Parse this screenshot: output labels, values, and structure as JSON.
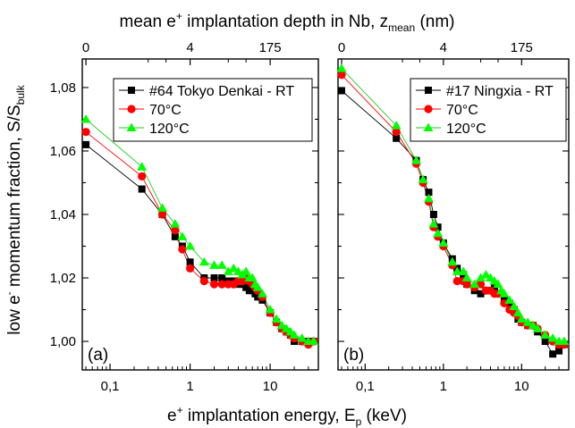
{
  "figure": {
    "top_title_main": "mean e",
    "top_title_sup": "+",
    "top_title_rest": " implantation depth in Nb, z",
    "top_title_sub": "mean",
    "top_title_unit": " (nm)",
    "ylabel_a": "low e",
    "ylabel_sup": "-",
    "ylabel_b": " momentum fraction, S/S",
    "ylabel_sub": "bulk",
    "xlabel_a": "e",
    "xlabel_sup": "+",
    "xlabel_b": " implantation energy, E",
    "xlabel_sub": "p",
    "xlabel_unit": " (keV)"
  },
  "chart_data": [
    {
      "type": "line",
      "panel_label": "(a)",
      "xscale": "log",
      "xlim": [
        0.045,
        40
      ],
      "ylim": [
        0.991,
        1.089
      ],
      "x_ticks": [
        {
          "value": 0.1,
          "label": "0,1"
        },
        {
          "value": 1,
          "label": "1"
        },
        {
          "value": 10,
          "label": "10"
        }
      ],
      "y_ticks": [
        {
          "value": 1.0,
          "label": "1,00"
        },
        {
          "value": 1.02,
          "label": "1,02"
        },
        {
          "value": 1.04,
          "label": "1,04"
        },
        {
          "value": 1.06,
          "label": "1,06"
        },
        {
          "value": 1.08,
          "label": "1,08"
        }
      ],
      "top_ticks": [
        {
          "value": 0.05,
          "label": "0"
        },
        {
          "value": 1.0,
          "label": "4"
        },
        {
          "value": 10,
          "label": "175"
        }
      ],
      "legend_position": "top-right",
      "series": [
        {
          "name": "#64 Tokyo Denkai - RT",
          "marker": "square",
          "color": "#000000",
          "x": [
            0.05,
            0.25,
            0.45,
            0.65,
            0.8,
            1.0,
            1.5,
            2.0,
            2.5,
            3.0,
            3.5,
            4.0,
            4.5,
            5.0,
            5.5,
            6.0,
            6.5,
            7.0,
            8.0,
            10,
            12,
            14,
            16,
            18,
            20,
            25,
            30,
            35
          ],
          "y": [
            1.062,
            1.048,
            1.04,
            1.033,
            1.03,
            1.025,
            1.02,
            1.02,
            1.02,
            1.019,
            1.019,
            1.018,
            1.018,
            1.017,
            1.016,
            1.016,
            1.015,
            1.014,
            1.013,
            1.009,
            1.006,
            1.004,
            1.003,
            1.002,
            1.0,
            1.0,
            1.0,
            1.0
          ]
        },
        {
          "name": "70°C",
          "marker": "circle",
          "color": "#ff0000",
          "x": [
            0.05,
            0.25,
            0.45,
            0.65,
            0.8,
            1.0,
            1.5,
            2.0,
            2.5,
            3.0,
            3.5,
            4.0,
            4.5,
            5.0,
            5.5,
            6.0,
            6.5,
            7.0,
            8.0,
            10,
            12,
            14,
            16,
            18,
            20,
            25,
            30,
            35
          ],
          "y": [
            1.066,
            1.052,
            1.04,
            1.035,
            1.029,
            1.023,
            1.019,
            1.018,
            1.018,
            1.018,
            1.018,
            1.019,
            1.019,
            1.02,
            1.019,
            1.018,
            1.017,
            1.016,
            1.014,
            1.009,
            1.006,
            1.004,
            1.003,
            1.002,
            1.001,
            1.0,
            0.999,
            1.0
          ]
        },
        {
          "name": "120°C",
          "marker": "triangle",
          "color": "#00ff00",
          "x": [
            0.05,
            0.25,
            0.45,
            0.65,
            0.8,
            1.0,
            1.5,
            2.0,
            2.5,
            3.0,
            3.5,
            4.0,
            4.5,
            5.0,
            5.5,
            6.0,
            6.5,
            7.0,
            8.0,
            10,
            12,
            14,
            16,
            18,
            20,
            25,
            30,
            35
          ],
          "y": [
            1.07,
            1.055,
            1.042,
            1.037,
            1.033,
            1.03,
            1.025,
            1.024,
            1.024,
            1.022,
            1.023,
            1.022,
            1.021,
            1.022,
            1.02,
            1.02,
            1.018,
            1.017,
            1.015,
            1.01,
            1.007,
            1.005,
            1.004,
            1.003,
            1.002,
            1.001,
            1.0,
            1.0
          ]
        }
      ]
    },
    {
      "type": "line",
      "panel_label": "(b)",
      "xscale": "log",
      "xlim": [
        0.045,
        40
      ],
      "ylim": [
        0.991,
        1.089
      ],
      "x_ticks": [
        {
          "value": 0.1,
          "label": "0,1"
        },
        {
          "value": 1,
          "label": "1"
        },
        {
          "value": 10,
          "label": "10"
        }
      ],
      "top_ticks": [
        {
          "value": 0.05,
          "label": "0"
        },
        {
          "value": 1.0,
          "label": "4"
        },
        {
          "value": 10,
          "label": "175"
        }
      ],
      "legend_position": "top-right",
      "series": [
        {
          "name": "#17 Ningxia - RT",
          "marker": "square",
          "color": "#000000",
          "x": [
            0.05,
            0.25,
            0.45,
            0.55,
            0.65,
            0.75,
            0.85,
            1.0,
            1.3,
            1.5,
            1.8,
            2.0,
            2.5,
            3.0,
            3.5,
            4.0,
            4.5,
            5.0,
            5.5,
            6.0,
            7.0,
            8.0,
            9.0,
            10,
            12,
            14,
            16,
            20,
            25,
            30,
            35
          ],
          "y": [
            1.079,
            1.064,
            1.057,
            1.051,
            1.047,
            1.04,
            1.036,
            1.031,
            1.026,
            1.023,
            1.021,
            1.018,
            1.016,
            1.015,
            1.016,
            1.016,
            1.017,
            1.015,
            1.015,
            1.013,
            1.012,
            1.01,
            1.007,
            1.006,
            1.005,
            1.005,
            1.003,
            1.0,
            0.996,
            0.997,
            0.999
          ]
        },
        {
          "name": "70°C",
          "marker": "circle",
          "color": "#ff0000",
          "x": [
            0.05,
            0.25,
            0.45,
            0.55,
            0.65,
            0.75,
            0.85,
            1.0,
            1.3,
            1.5,
            1.8,
            2.0,
            2.5,
            3.0,
            3.5,
            4.0,
            4.5,
            5.0,
            5.5,
            6.0,
            7.0,
            8.0,
            9.0,
            10,
            12,
            14,
            16,
            20,
            25,
            30,
            35
          ],
          "y": [
            1.084,
            1.066,
            1.056,
            1.05,
            1.044,
            1.036,
            1.033,
            1.03,
            1.024,
            1.019,
            1.019,
            1.018,
            1.017,
            1.018,
            1.016,
            1.016,
            1.015,
            1.015,
            1.015,
            1.012,
            1.01,
            1.009,
            1.008,
            1.006,
            1.005,
            1.005,
            1.004,
            1.002,
            1.0,
            0.999,
            0.999
          ]
        },
        {
          "name": "120°C",
          "marker": "triangle",
          "color": "#00ff00",
          "x": [
            0.05,
            0.25,
            0.45,
            0.55,
            0.65,
            0.75,
            0.85,
            1.0,
            1.3,
            1.5,
            1.8,
            2.0,
            2.5,
            3.0,
            3.5,
            4.0,
            4.5,
            5.0,
            5.5,
            6.0,
            7.0,
            8.0,
            9.0,
            10,
            12,
            14,
            16,
            20,
            25,
            30,
            35
          ],
          "y": [
            1.086,
            1.068,
            1.057,
            1.051,
            1.045,
            1.037,
            1.034,
            1.031,
            1.025,
            1.022,
            1.022,
            1.02,
            1.018,
            1.02,
            1.021,
            1.02,
            1.019,
            1.018,
            1.016,
            1.015,
            1.013,
            1.011,
            1.009,
            1.007,
            1.006,
            1.005,
            1.004,
            1.002,
            1.001,
            1.0,
            1.0
          ]
        }
      ]
    }
  ]
}
